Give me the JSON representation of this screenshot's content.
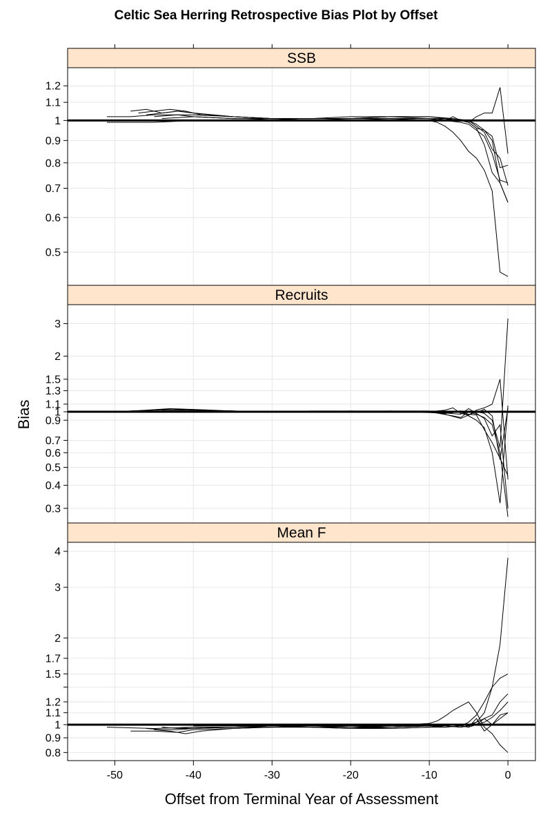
{
  "chart_data": {
    "type": "line",
    "title": "Celtic Sea Herring Retrospective Bias Plot by Offset",
    "xlabel": "Offset from Terminal Year of Assessment",
    "ylabel": "Bias",
    "xlim": [
      -56,
      3.5
    ],
    "x_ticks": [
      -50,
      -40,
      -30,
      -20,
      -10,
      0
    ],
    "grid": true,
    "reference_line": 1,
    "panels": [
      {
        "name": "SSB",
        "y_scale": "log",
        "ylim": [
          0.42,
          1.32
        ],
        "y_ticks": [
          0.5,
          0.6,
          0.7,
          0.8,
          0.9,
          1,
          1.1,
          1.2
        ],
        "series": [
          {
            "x": [
              -51,
              -45,
              -40,
              -35,
              -30,
              -25,
              -20,
              -15,
              -10,
              -8,
              -6,
              -5,
              -4,
              -3,
              -2,
              -1,
              0
            ],
            "y": [
              0.99,
              0.99,
              1.0,
              1.0,
              1.01,
              1.01,
              1.01,
              1.01,
              1.0,
              1.01,
              1.0,
              0.99,
              1.02,
              1.04,
              1.04,
              1.19,
              0.84
            ]
          },
          {
            "x": [
              -51,
              -48,
              -45,
              -42,
              -40,
              -35,
              -30,
              -25,
              -20,
              -15,
              -10,
              -8,
              -7,
              -6,
              -5,
              -4,
              -3,
              -2,
              -1,
              0
            ],
            "y": [
              1.02,
              1.02,
              1.03,
              1.03,
              1.02,
              1.01,
              1.01,
              1.0,
              1.0,
              1.01,
              1.01,
              1.0,
              1.02,
              1.0,
              1.0,
              0.98,
              0.95,
              0.92,
              0.78,
              0.79
            ]
          },
          {
            "x": [
              -48,
              -46,
              -44,
              -42,
              -40,
              -35,
              -30,
              -25,
              -20,
              -15,
              -10,
              -8,
              -6,
              -5,
              -4,
              -3,
              -2,
              -1,
              0
            ],
            "y": [
              1.05,
              1.06,
              1.04,
              1.05,
              1.04,
              1.02,
              1.01,
              1.01,
              1.01,
              1.02,
              1.02,
              1.01,
              1.0,
              0.99,
              0.96,
              0.95,
              0.9,
              0.72,
              0.65
            ]
          },
          {
            "x": [
              -47,
              -45,
              -43,
              -41,
              -39,
              -35,
              -30,
              -25,
              -20,
              -15,
              -10,
              -7,
              -5,
              -4,
              -3,
              -2,
              -1,
              0
            ],
            "y": [
              1.04,
              1.05,
              1.06,
              1.05,
              1.03,
              1.02,
              1.01,
              1.01,
              1.02,
              1.02,
              1.02,
              1.01,
              1.0,
              0.97,
              0.94,
              0.86,
              0.82,
              0.71
            ]
          },
          {
            "x": [
              -46,
              -44,
              -42,
              -40,
              -35,
              -30,
              -25,
              -20,
              -15,
              -10,
              -8,
              -6,
              -5,
              -4,
              -3,
              -2,
              -1,
              0
            ],
            "y": [
              1.03,
              1.04,
              1.05,
              1.04,
              1.02,
              1.01,
              1.01,
              1.01,
              1.02,
              1.01,
              1.0,
              0.99,
              0.98,
              0.95,
              0.92,
              0.84,
              0.73,
              0.72
            ]
          },
          {
            "x": [
              -45,
              -42,
              -40,
              -35,
              -30,
              -25,
              -20,
              -15,
              -10,
              -9,
              -8,
              -7,
              -6,
              -5,
              -4,
              -3,
              -2,
              -1,
              0
            ],
            "y": [
              1.02,
              1.03,
              1.03,
              1.02,
              1.01,
              1.01,
              1.01,
              1.01,
              1.0,
              0.99,
              0.97,
              0.94,
              0.9,
              0.85,
              0.82,
              0.77,
              0.69,
              0.45,
              0.44
            ]
          },
          {
            "x": [
              -44,
              -40,
              -35,
              -30,
              -25,
              -20,
              -15,
              -10,
              -8,
              -6,
              -5,
              -4,
              -3,
              -2,
              -1,
              0
            ],
            "y": [
              1.01,
              1.02,
              1.01,
              1.01,
              1.0,
              1.01,
              1.01,
              1.01,
              1.01,
              1.0,
              0.99,
              0.96,
              0.88,
              0.76,
              0.72,
              0.65
            ]
          }
        ]
      },
      {
        "name": "Recruits",
        "y_scale": "log",
        "ylim": [
          0.25,
          3.8
        ],
        "y_ticks": [
          0.3,
          0.4,
          0.5,
          0.6,
          0.7,
          0.9,
          1,
          1.1,
          1.3,
          1.5,
          2,
          3
        ],
        "y_tick_labels": [
          "0.3",
          "0.4",
          "0.5",
          "0.6",
          "0.7",
          "0.9",
          "1",
          "1.1",
          "1.3",
          "1.5",
          "2",
          "3"
        ],
        "series": [
          {
            "x": [
              -51,
              -45,
              -40,
              -35,
              -30,
              -25,
              -20,
              -15,
              -10,
              -8,
              -7,
              -6,
              -5,
              -4,
              -3,
              -2,
              -1,
              0
            ],
            "y": [
              1.0,
              1.02,
              1.02,
              1.01,
              1.0,
              1.0,
              1.01,
              1.0,
              1.0,
              1.02,
              1.05,
              0.98,
              0.96,
              1.02,
              1.05,
              1.1,
              1.5,
              0.43
            ]
          },
          {
            "x": [
              -48,
              -44,
              -40,
              -35,
              -30,
              -25,
              -20,
              -15,
              -10,
              -8,
              -6,
              -5,
              -4,
              -3,
              -2,
              -1,
              0
            ],
            "y": [
              1.01,
              1.03,
              1.02,
              1.01,
              1.0,
              1.01,
              1.01,
              1.01,
              1.0,
              0.98,
              1.0,
              0.95,
              0.9,
              0.82,
              0.6,
              0.32,
              1.08
            ]
          },
          {
            "x": [
              -46,
              -43,
              -40,
              -35,
              -30,
              -25,
              -20,
              -15,
              -10,
              -8,
              -6,
              -5,
              -4,
              -3,
              -2,
              -1,
              0
            ],
            "y": [
              1.02,
              1.04,
              1.03,
              1.01,
              1.0,
              1.0,
              1.0,
              1.01,
              1.01,
              0.97,
              0.92,
              0.96,
              1.0,
              0.98,
              0.9,
              0.64,
              3.2
            ]
          },
          {
            "x": [
              -44,
              -42,
              -40,
              -35,
              -30,
              -25,
              -20,
              -15,
              -10,
              -7,
              -6,
              -5,
              -4,
              -3,
              -2,
              -1,
              0
            ],
            "y": [
              1.02,
              1.03,
              1.02,
              1.01,
              1.0,
              1.0,
              1.0,
              1.0,
              1.0,
              0.95,
              0.93,
              1.0,
              0.97,
              0.93,
              0.85,
              0.6,
              0.27
            ]
          },
          {
            "x": [
              -42,
              -40,
              -35,
              -30,
              -25,
              -20,
              -15,
              -10,
              -6,
              -5,
              -4,
              -3,
              -2,
              -1,
              0
            ],
            "y": [
              1.01,
              1.01,
              1.0,
              1.0,
              1.0,
              1.0,
              1.0,
              1.0,
              0.97,
              1.04,
              0.98,
              0.92,
              0.74,
              0.85,
              0.3
            ]
          },
          {
            "x": [
              -40,
              -35,
              -30,
              -25,
              -20,
              -15,
              -10,
              -8,
              -6,
              -5,
              -4,
              -3,
              -2,
              -1,
              0
            ],
            "y": [
              1.0,
              1.0,
              1.0,
              1.0,
              1.0,
              1.0,
              0.99,
              0.98,
              1.0,
              0.97,
              0.96,
              0.8,
              0.68,
              0.56,
              0.45
            ]
          },
          {
            "x": [
              -15,
              -10,
              -6,
              -4,
              -3,
              -2,
              -1,
              0
            ],
            "y": [
              1.0,
              1.0,
              1.01,
              0.99,
              1.03,
              0.95,
              0.55,
              1.05
            ]
          }
        ]
      },
      {
        "name": "Mean F",
        "y_scale": "log",
        "ylim": [
          0.75,
          4.3
        ],
        "y_ticks": [
          0.8,
          0.9,
          1,
          1.1,
          1.2,
          1.35,
          1.5,
          1.7,
          2,
          3,
          4
        ],
        "y_tick_labels": [
          "0.8",
          "0.9",
          "1",
          "1.1",
          "1.2",
          "",
          "1.5",
          "1.7",
          "2",
          "3",
          "4"
        ],
        "series": [
          {
            "x": [
              -51,
              -45,
              -40,
              -35,
              -30,
              -25,
              -20,
              -15,
              -10,
              -9,
              -8,
              -7,
              -6,
              -5,
              -4,
              -3,
              -2,
              -1,
              0
            ],
            "y": [
              0.98,
              0.97,
              0.98,
              0.98,
              0.99,
              0.98,
              0.98,
              0.99,
              1.01,
              1.03,
              1.07,
              1.12,
              1.16,
              1.2,
              1.1,
              0.98,
              0.93,
              0.85,
              0.8
            ]
          },
          {
            "x": [
              -48,
              -45,
              -42,
              -40,
              -35,
              -30,
              -25,
              -20,
              -15,
              -10,
              -8,
              -6,
              -5,
              -4,
              -3,
              -2,
              -1,
              0
            ],
            "y": [
              0.95,
              0.95,
              0.94,
              0.96,
              0.97,
              0.98,
              0.98,
              0.97,
              0.98,
              0.99,
              0.98,
              0.99,
              1.02,
              1.08,
              1.2,
              1.35,
              1.45,
              1.5
            ]
          },
          {
            "x": [
              -46,
              -44,
              -42,
              -40,
              -35,
              -30,
              -25,
              -20,
              -15,
              -10,
              -8,
              -6,
              -5,
              -4,
              -3,
              -2,
              -1,
              0
            ],
            "y": [
              0.97,
              0.96,
              0.96,
              0.97,
              0.98,
              0.98,
              0.99,
              0.98,
              0.97,
              0.98,
              0.98,
              0.99,
              1.0,
              1.02,
              1.1,
              1.35,
              1.9,
              3.8
            ]
          },
          {
            "x": [
              -45,
              -43,
              -41,
              -39,
              -35,
              -30,
              -25,
              -20,
              -15,
              -10,
              -8,
              -6,
              -5,
              -4,
              -3,
              -2,
              -1,
              0
            ],
            "y": [
              0.96,
              0.95,
              0.93,
              0.95,
              0.97,
              0.98,
              0.98,
              0.97,
              0.97,
              0.98,
              0.99,
              0.98,
              0.99,
              1.02,
              1.05,
              1.08,
              1.2,
              1.28
            ]
          },
          {
            "x": [
              -44,
              -42,
              -40,
              -35,
              -30,
              -25,
              -20,
              -15,
              -10,
              -8,
              -6,
              -5,
              -4,
              -3,
              -2,
              -1,
              0
            ],
            "y": [
              0.98,
              0.97,
              0.97,
              0.98,
              0.99,
              0.99,
              0.98,
              0.98,
              0.99,
              1.0,
              0.99,
              0.98,
              1.05,
              0.95,
              1.0,
              1.05,
              1.1
            ]
          },
          {
            "x": [
              -42,
              -40,
              -35,
              -30,
              -25,
              -20,
              -15,
              -10,
              -8,
              -6,
              -5,
              -4,
              -3,
              -2,
              -1,
              0
            ],
            "y": [
              0.97,
              0.98,
              0.98,
              0.99,
              0.99,
              0.99,
              0.99,
              0.99,
              0.99,
              0.98,
              0.99,
              1.0,
              1.05,
              1.0,
              1.08,
              1.1
            ]
          },
          {
            "x": [
              -40,
              -35,
              -30,
              -25,
              -20,
              -15,
              -10,
              -8,
              -6,
              -5,
              -4,
              -3,
              -2,
              -1,
              0
            ],
            "y": [
              0.99,
              0.99,
              0.99,
              0.99,
              0.99,
              0.98,
              0.99,
              1.0,
              0.99,
              0.98,
              1.0,
              1.02,
              1.06,
              1.12,
              1.2
            ]
          }
        ]
      }
    ]
  }
}
